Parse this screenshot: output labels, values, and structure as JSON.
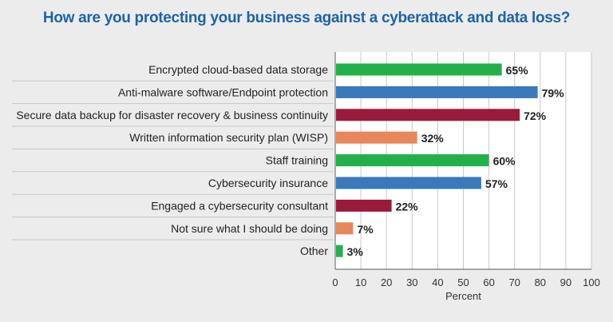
{
  "chart_data": {
    "type": "bar",
    "orientation": "horizontal",
    "title": "How are you protecting your business against a cyberattack and data loss?",
    "xlabel": "Percent",
    "ylabel": "",
    "xlim": [
      0,
      100
    ],
    "xticks": [
      0,
      10,
      20,
      30,
      40,
      50,
      60,
      70,
      80,
      90,
      100
    ],
    "grid": true,
    "categories": [
      "Encrypted cloud-based data storage",
      "Anti-malware software/Endpoint protection",
      "Secure data backup for disaster recovery & business continuity",
      "Written information security plan (WISP)",
      "Staff training",
      "Cybersecurity insurance",
      "Engaged a cybersecurity consultant",
      "Not sure what I should be doing",
      "Other"
    ],
    "values": [
      65,
      79,
      72,
      32,
      60,
      57,
      22,
      7,
      3
    ],
    "data_labels": [
      "65%",
      "79%",
      "72%",
      "32%",
      "60%",
      "57%",
      "22%",
      "7%",
      "3%"
    ],
    "bar_colors": [
      "#22b04b",
      "#3b79bb",
      "#9a1a3d",
      "#e8875a",
      "#22b04b",
      "#3b79bb",
      "#9a1a3d",
      "#e8875a",
      "#22b04b"
    ]
  }
}
